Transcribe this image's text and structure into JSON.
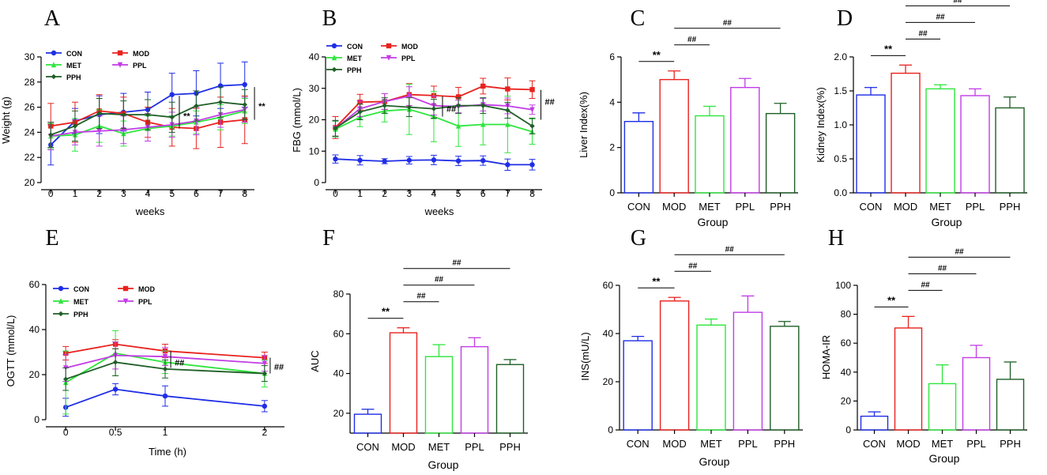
{
  "colors": {
    "CON": "#1f2ee6",
    "MOD": "#e8221e",
    "MET": "#2ee63c",
    "PPL": "#c23ce6",
    "PPH": "#1f5f27"
  },
  "groups": [
    "CON",
    "MOD",
    "MET",
    "PPL",
    "PPH"
  ],
  "chart_data": [
    {
      "id": "A",
      "panel_label": "A",
      "type": "line",
      "xlabel": "weeks",
      "ylabel": "Weight (g)",
      "x": [
        0,
        1,
        2,
        3,
        4,
        5,
        6,
        7,
        8
      ],
      "xticks": [
        "0",
        "1",
        "2",
        "3",
        "4",
        "5",
        "6",
        "7",
        "8"
      ],
      "ylim": [
        20,
        30
      ],
      "yticks": [
        20,
        22,
        24,
        26,
        28,
        30
      ],
      "legend_order": [
        "CON",
        "MOD",
        "MET",
        "PPL",
        "PPH"
      ],
      "series": [
        {
          "name": "CON",
          "values": [
            23.0,
            24.9,
            25.4,
            25.6,
            25.8,
            27.0,
            27.1,
            27.7,
            27.8
          ],
          "err": [
            1.6,
            1.0,
            1.5,
            1.5,
            1.4,
            1.7,
            1.8,
            1.8,
            1.8
          ]
        },
        {
          "name": "MOD",
          "values": [
            24.5,
            24.8,
            25.7,
            25.5,
            24.8,
            24.4,
            24.3,
            24.8,
            25.0
          ],
          "err": [
            1.8,
            1.6,
            1.3,
            1.3,
            1.2,
            1.5,
            1.6,
            2.0,
            1.9
          ]
        },
        {
          "name": "MET",
          "values": [
            23.7,
            23.8,
            24.5,
            23.9,
            24.3,
            24.5,
            24.8,
            25.2,
            25.7
          ],
          "err": [
            1.0,
            1.3,
            1.3,
            1.0,
            1.0,
            0.8,
            0.9,
            1.0,
            1.0
          ]
        },
        {
          "name": "PPL",
          "values": [
            23.7,
            24.0,
            24.1,
            24.2,
            24.4,
            24.6,
            24.9,
            25.4,
            25.8
          ],
          "err": [
            1.1,
            1.0,
            1.2,
            1.1,
            1.1,
            1.0,
            1.1,
            1.0,
            1.0
          ]
        },
        {
          "name": "PPH",
          "values": [
            23.8,
            24.5,
            25.5,
            25.4,
            25.4,
            25.2,
            26.1,
            26.4,
            26.2
          ],
          "err": [
            1.0,
            1.2,
            1.2,
            1.1,
            1.2,
            1.2,
            1.2,
            1.2,
            1.2
          ]
        }
      ],
      "annotations": [
        {
          "text": "**",
          "at_x": 5.4,
          "at_y": 25.3,
          "bar_from": 26.9,
          "bar_to": 24.3
        },
        {
          "text": "**",
          "at_x": 8.5,
          "at_y": 26.1,
          "bar_from": 27.6,
          "bar_to": 25.0
        }
      ]
    },
    {
      "id": "B",
      "panel_label": "B",
      "type": "line",
      "xlabel": "weeks",
      "ylabel": "FBG (mmol/L)",
      "x": [
        0,
        1,
        2,
        3,
        4,
        5,
        6,
        7,
        8
      ],
      "xticks": [
        "0",
        "1",
        "2",
        "3",
        "4",
        "5",
        "6",
        "7",
        "8"
      ],
      "ylim": [
        0,
        40
      ],
      "yticks": [
        0,
        10,
        20,
        30,
        40
      ],
      "legend_order": [
        "CON",
        "MOD",
        "MET",
        "PPL",
        "PPH"
      ],
      "series": [
        {
          "name": "CON",
          "values": [
            7.5,
            7.1,
            6.8,
            7.1,
            7.2,
            6.9,
            7.0,
            5.7,
            5.7
          ],
          "err": [
            1.3,
            1.5,
            0.8,
            1.2,
            1.5,
            1.5,
            1.5,
            1.8,
            1.7
          ]
        },
        {
          "name": "MOD",
          "values": [
            17.5,
            25.6,
            25.8,
            28.0,
            27.7,
            27.3,
            30.7,
            29.8,
            29.6
          ],
          "err": [
            3.5,
            2.5,
            2.5,
            3.5,
            3.0,
            3.0,
            2.5,
            3.5,
            2.8
          ]
        },
        {
          "name": "MET",
          "values": [
            17.0,
            20.8,
            22.8,
            23.3,
            21.0,
            18.0,
            18.5,
            18.5,
            16.2
          ],
          "err": [
            2.5,
            3.0,
            3.5,
            8.0,
            8.0,
            6.5,
            6.5,
            9.0,
            4.0
          ]
        },
        {
          "name": "PPL",
          "values": [
            17.2,
            23.5,
            25.8,
            27.5,
            24.5,
            24.2,
            24.8,
            24.4,
            23.2
          ],
          "err": [
            2.5,
            2.5,
            2.5,
            3.0,
            3.0,
            2.0,
            2.0,
            2.5,
            1.5
          ]
        },
        {
          "name": "PPH",
          "values": [
            17.3,
            22.5,
            24.5,
            24.0,
            23.5,
            24.5,
            24.5,
            23.0,
            18.0
          ],
          "err": [
            2.5,
            2.5,
            2.5,
            3.0,
            3.0,
            2.5,
            2.5,
            2.5,
            2.5
          ]
        }
      ],
      "annotations": [
        {
          "text": "##",
          "at_x": 4.45,
          "at_y": 23.5,
          "bar_from": 27.5,
          "bar_to": 21.0
        },
        {
          "text": "##",
          "at_x": 8.45,
          "at_y": 25.8,
          "bar_from": 29.5,
          "bar_to": 20.0
        }
      ]
    },
    {
      "id": "C",
      "panel_label": "C",
      "type": "bar",
      "xlabel": "Group",
      "ylabel": "Liver Index(%)",
      "categories": [
        "CON",
        "MOD",
        "MET",
        "PPL",
        "PPH"
      ],
      "values": [
        3.15,
        5.0,
        3.4,
        4.65,
        3.5
      ],
      "err": [
        0.38,
        0.38,
        0.42,
        0.4,
        0.45
      ],
      "ylim": [
        0,
        6
      ],
      "yticks": [
        0,
        2,
        4,
        6
      ],
      "comparisons": [
        {
          "from": 0,
          "to": 1,
          "text": "**",
          "level": 0
        },
        {
          "from": 1,
          "to": 2,
          "text": "##",
          "level": 1
        },
        {
          "from": 1,
          "to": 4,
          "text": "##",
          "level": 2
        }
      ]
    },
    {
      "id": "D",
      "panel_label": "D",
      "type": "bar",
      "xlabel": "Group",
      "ylabel": "Kidney Index(%)",
      "categories": [
        "CON",
        "MOD",
        "MET",
        "PPL",
        "PPH"
      ],
      "values": [
        1.44,
        1.76,
        1.53,
        1.43,
        1.25
      ],
      "err": [
        0.11,
        0.12,
        0.06,
        0.1,
        0.16
      ],
      "ylim": [
        0,
        2.0
      ],
      "yticks": [
        0,
        0.5,
        1.0,
        1.5,
        2.0
      ],
      "yticklabels": [
        "0.0",
        "0.5",
        "1.0",
        "1.5",
        "2.0"
      ],
      "comparisons": [
        {
          "from": 0,
          "to": 1,
          "text": "**",
          "level": 0
        },
        {
          "from": 1,
          "to": 2,
          "text": "##",
          "level": 1
        },
        {
          "from": 1,
          "to": 3,
          "text": "##",
          "level": 2
        },
        {
          "from": 1,
          "to": 4,
          "text": "##",
          "level": 3
        }
      ]
    },
    {
      "id": "E",
      "panel_label": "E",
      "type": "line",
      "xlabel": "Time (h)",
      "ylabel": "OGTT (mmol/L)",
      "x": [
        0,
        0.5,
        1,
        2
      ],
      "xticks": [
        "0",
        "0.5",
        "1",
        "2"
      ],
      "ylim": [
        0,
        60
      ],
      "yticks": [
        0,
        20,
        40,
        60
      ],
      "legend_order": [
        "CON",
        "MOD",
        "MET",
        "PPL",
        "PPH"
      ],
      "series": [
        {
          "name": "CON",
          "values": [
            5.5,
            13.5,
            10.5,
            6.0
          ],
          "err": [
            4.0,
            2.5,
            4.5,
            2.5
          ]
        },
        {
          "name": "MOD",
          "values": [
            29.5,
            33.5,
            30.5,
            27.5
          ],
          "err": [
            3.0,
            2.0,
            3.0,
            2.5
          ]
        },
        {
          "name": "MET",
          "values": [
            16.5,
            29.5,
            25.5,
            20.5
          ],
          "err": [
            14.0,
            10.0,
            5.0,
            6.0
          ]
        },
        {
          "name": "PPL",
          "values": [
            23.0,
            28.5,
            28.0,
            25.0
          ],
          "err": [
            6.0,
            6.0,
            4.0,
            3.5
          ]
        },
        {
          "name": "PPH",
          "values": [
            18.0,
            25.5,
            22.5,
            20.5
          ],
          "err": [
            5.0,
            6.0,
            4.0,
            3.5
          ]
        }
      ],
      "annotations": [
        {
          "text": "##",
          "at_x": 1.08,
          "at_y": 25.5,
          "bar_from": 30.5,
          "bar_to": 23.0
        },
        {
          "text": "##",
          "at_x": 2.08,
          "at_y": 23.5,
          "bar_from": 27.5,
          "bar_to": 20.5
        }
      ]
    },
    {
      "id": "F",
      "panel_label": "F",
      "type": "bar",
      "xlabel": "Group",
      "ylabel": "AUC",
      "categories": [
        "CON",
        "MOD",
        "MET",
        "PPL",
        "PPH"
      ],
      "values": [
        19.5,
        60.5,
        48.5,
        53.5,
        44.5
      ],
      "err": [
        2.5,
        2.5,
        6.0,
        4.5,
        2.5
      ],
      "ylim": [
        10,
        80
      ],
      "yticks": [
        20,
        40,
        60,
        80
      ],
      "comparisons": [
        {
          "from": 0,
          "to": 1,
          "text": "**",
          "level": 0
        },
        {
          "from": 1,
          "to": 2,
          "text": "##",
          "level": 1
        },
        {
          "from": 1,
          "to": 3,
          "text": "##",
          "level": 2
        },
        {
          "from": 1,
          "to": 4,
          "text": "##",
          "level": 3
        }
      ]
    },
    {
      "id": "G",
      "panel_label": "G",
      "type": "bar",
      "xlabel": "Group",
      "ylabel": "INS(mU/L)",
      "categories": [
        "CON",
        "MOD",
        "MET",
        "PPL",
        "PPH"
      ],
      "values": [
        37.0,
        53.5,
        43.5,
        48.8,
        43.0
      ],
      "err": [
        1.8,
        1.5,
        2.5,
        6.8,
        2.0
      ],
      "ylim": [
        0,
        60
      ],
      "yticks": [
        0,
        20,
        40,
        60
      ],
      "comparisons": [
        {
          "from": 0,
          "to": 1,
          "text": "**",
          "level": 0
        },
        {
          "from": 1,
          "to": 2,
          "text": "##",
          "level": 1
        },
        {
          "from": 1,
          "to": 4,
          "text": "##",
          "level": 2
        }
      ]
    },
    {
      "id": "H",
      "panel_label": "H",
      "type": "bar",
      "xlabel": "Group",
      "ylabel": "HOMA-IR",
      "categories": [
        "CON",
        "MOD",
        "MET",
        "PPL",
        "PPH"
      ],
      "values": [
        9.5,
        70.5,
        32.0,
        50.0,
        35.0
      ],
      "err": [
        3.0,
        8.0,
        13.0,
        8.5,
        12.0
      ],
      "ylim": [
        0,
        100
      ],
      "yticks": [
        0,
        20,
        40,
        60,
        80,
        100
      ],
      "comparisons": [
        {
          "from": 0,
          "to": 1,
          "text": "**",
          "level": 0
        },
        {
          "from": 1,
          "to": 2,
          "text": "##",
          "level": 1
        },
        {
          "from": 1,
          "to": 3,
          "text": "##",
          "level": 2
        },
        {
          "from": 1,
          "to": 4,
          "text": "##",
          "level": 3
        }
      ]
    }
  ]
}
